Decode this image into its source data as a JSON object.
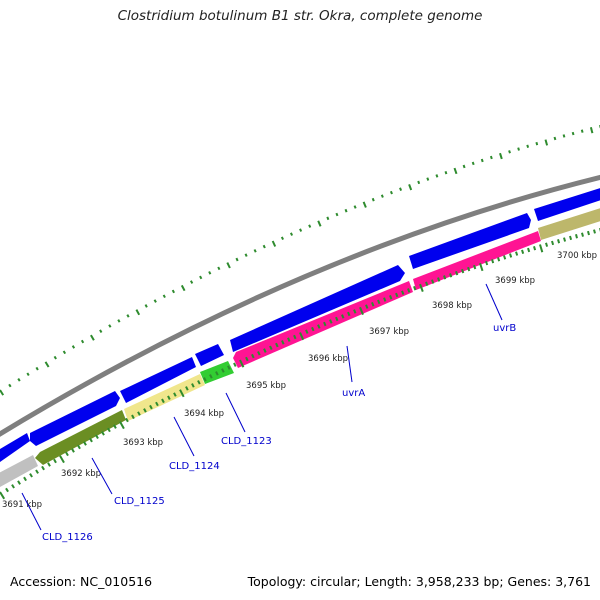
{
  "title": "Clostridium botulinum B1 str. Okra, complete genome",
  "footer": {
    "accession": "Accession: NC_010516",
    "summary": "Topology: circular; Length: 3,958,233 bp; Genes: 3,761"
  },
  "colors": {
    "backbone": "#7f7f7f",
    "forward_cds": "#0000ee",
    "reverse_blue": "#0000ee",
    "pink": "#ff1493",
    "olive": "#6b8e23",
    "khaki": "#f0e68c",
    "green": "#32cd32",
    "gray_gene": "#c0c0c0",
    "tan": "#bdb76b",
    "ticks": "#2e8b2e",
    "label": "#0000cc"
  },
  "scale_labels": [
    "3691 kbp",
    "3692 kbp",
    "3693 kbp",
    "3694 kbp",
    "3695 kbp",
    "3696 kbp",
    "3697 kbp",
    "3698 kbp",
    "3699 kbp",
    "3700 kbp"
  ],
  "gene_labels": [
    "CLD_1126",
    "CLD_1125",
    "CLD_1124",
    "CLD_1123",
    "uvrA",
    "uvrB"
  ]
}
